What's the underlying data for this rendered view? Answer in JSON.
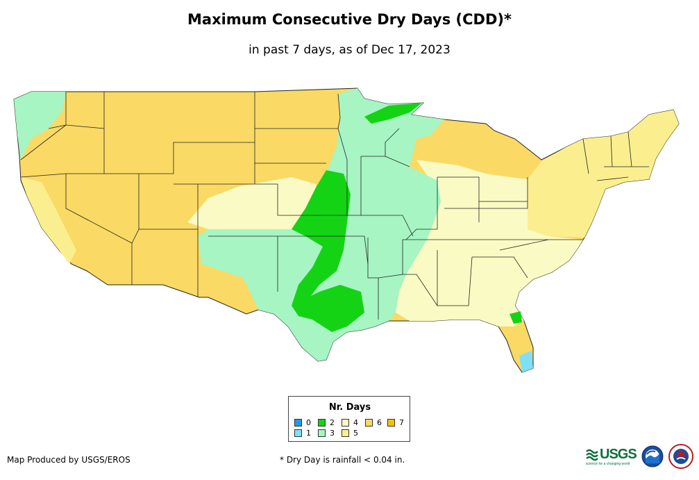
{
  "title": "Maximum Consecutive Dry Days (CDD)*",
  "subtitle": "in past 7 days, as of Dec 17, 2023",
  "legend": {
    "title": "Nr. Days",
    "items": [
      {
        "label": "0",
        "color": "#1e9be6"
      },
      {
        "label": "1",
        "color": "#7fe0f5"
      },
      {
        "label": "2",
        "color": "#14d314"
      },
      {
        "label": "3",
        "color": "#a6f5c3"
      },
      {
        "label": "4",
        "color": "#fafac4"
      },
      {
        "label": "5",
        "color": "#fbee8f"
      },
      {
        "label": "6",
        "color": "#fad964"
      },
      {
        "label": "7",
        "color": "#f5c200"
      }
    ]
  },
  "credit": "Map Produced by USGS/EROS",
  "footnote": "* Dry Day is rainfall < 0.04 in.",
  "logos": {
    "usgs": "USGS",
    "usgs_tagline": "science for a changing world"
  }
}
